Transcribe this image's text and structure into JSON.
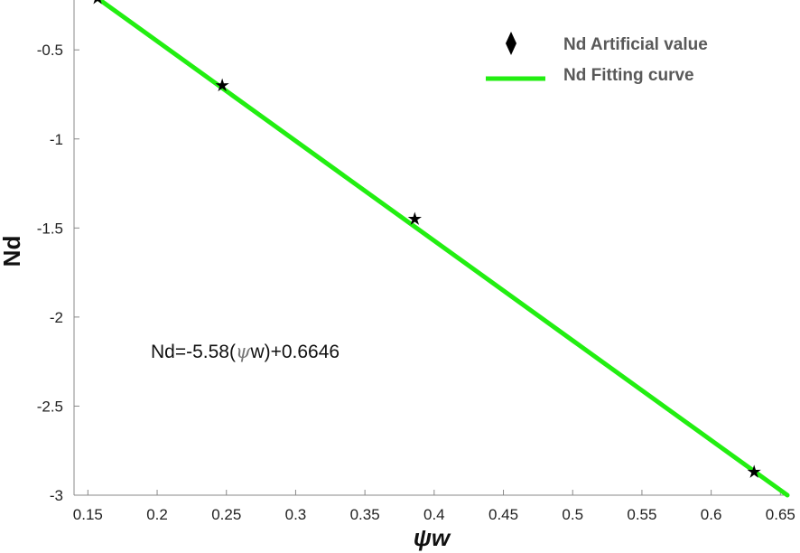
{
  "chart_data": {
    "type": "scatter",
    "xlabel": "ψw",
    "ylabel": "Nd",
    "xlim": [
      0.14,
      0.655
    ],
    "ylim": [
      -3.0,
      -0.22
    ],
    "xticks": [
      "0.15",
      "0.2",
      "0.25",
      "0.3",
      "0.35",
      "0.4",
      "0.45",
      "0.5",
      "0.55",
      "0.6",
      "0.65"
    ],
    "yticks": [
      "-0.5",
      "-1",
      "-1.5",
      "-2",
      "-2.5",
      "-3"
    ],
    "xtick_values": [
      0.15,
      0.2,
      0.25,
      0.3,
      0.35,
      0.4,
      0.45,
      0.5,
      0.55,
      0.6,
      0.65
    ],
    "ytick_values": [
      -0.5,
      -1.0,
      -1.5,
      -2.0,
      -2.5,
      -3.0
    ],
    "grid": false,
    "legend_position": "top-right",
    "series": [
      {
        "name": "Nd Artificial value",
        "kind": "scatter",
        "marker": "star",
        "color": "#000000",
        "x": [
          0.157,
          0.247,
          0.386,
          0.631
        ],
        "y": [
          -0.21,
          -0.7,
          -1.45,
          -2.87
        ]
      },
      {
        "name": "Nd Fitting curve",
        "kind": "line",
        "color": "#22ee11",
        "x": [
          0.14,
          0.655
        ],
        "y": [
          -0.115,
          -3.0
        ]
      }
    ],
    "annotation": {
      "prefix": "Nd=-5.58(",
      "symbol": "ψ",
      "suffix": "w)+0.6646"
    }
  }
}
